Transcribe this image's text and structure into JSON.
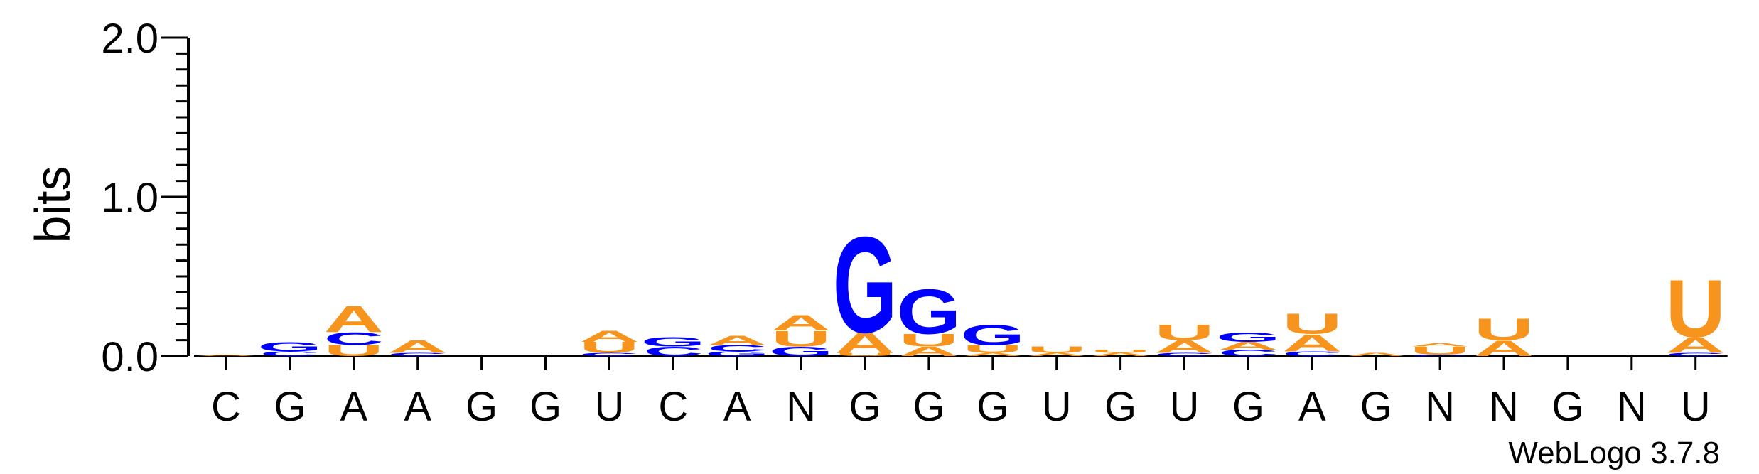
{
  "chart_data": {
    "type": "sequence-logo",
    "ylabel": "bits",
    "ylim": [
      0,
      2
    ],
    "yticks": [
      "0.0",
      "1.0",
      "2.0"
    ],
    "positions": [
      "C",
      "G",
      "A",
      "A",
      "G",
      "G",
      "U",
      "C",
      "A",
      "N",
      "G",
      "G",
      "G",
      "U",
      "G",
      "U",
      "G",
      "A",
      "G",
      "N",
      "N",
      "G",
      "N",
      "U"
    ],
    "stacks": [
      [
        {
          "base": "A",
          "bits": 0.01
        }
      ],
      [
        {
          "base": "C",
          "bits": 0.03
        },
        {
          "base": "G",
          "bits": 0.06
        }
      ],
      [
        {
          "base": "U",
          "bits": 0.07
        },
        {
          "base": "C",
          "bits": 0.08
        },
        {
          "base": "A",
          "bits": 0.17
        }
      ],
      [
        {
          "base": "C",
          "bits": 0.02
        },
        {
          "base": "A",
          "bits": 0.08
        }
      ],
      [],
      [],
      [
        {
          "base": "C",
          "bits": 0.02
        },
        {
          "base": "U",
          "bits": 0.07
        },
        {
          "base": "A",
          "bits": 0.07
        }
      ],
      [
        {
          "base": "C",
          "bits": 0.06
        },
        {
          "base": "G",
          "bits": 0.06
        }
      ],
      [
        {
          "base": "G",
          "bits": 0.03
        },
        {
          "base": "C",
          "bits": 0.04
        },
        {
          "base": "A",
          "bits": 0.06
        }
      ],
      [
        {
          "base": "G",
          "bits": 0.06
        },
        {
          "base": "U",
          "bits": 0.1
        },
        {
          "base": "A",
          "bits": 0.1
        }
      ],
      [
        {
          "base": "U",
          "bits": 0.02
        },
        {
          "base": "A",
          "bits": 0.13
        },
        {
          "base": "G",
          "bits": 0.62
        }
      ],
      [
        {
          "base": "A",
          "bits": 0.06
        },
        {
          "base": "U",
          "bits": 0.08
        },
        {
          "base": "G",
          "bits": 0.29
        }
      ],
      [
        {
          "base": "A",
          "bits": 0.02
        },
        {
          "base": "U",
          "bits": 0.05
        },
        {
          "base": "G",
          "bits": 0.13
        }
      ],
      [
        {
          "base": "A",
          "bits": 0.02
        },
        {
          "base": "U",
          "bits": 0.04
        }
      ],
      [
        {
          "base": "A",
          "bits": 0.02
        },
        {
          "base": "U",
          "bits": 0.02
        }
      ],
      [
        {
          "base": "C",
          "bits": 0.02
        },
        {
          "base": "A",
          "bits": 0.08
        },
        {
          "base": "U",
          "bits": 0.1
        }
      ],
      [
        {
          "base": "C",
          "bits": 0.04
        },
        {
          "base": "A",
          "bits": 0.05
        },
        {
          "base": "G",
          "bits": 0.06
        }
      ],
      [
        {
          "base": "C",
          "bits": 0.03
        },
        {
          "base": "A",
          "bits": 0.11
        },
        {
          "base": "U",
          "bits": 0.13
        }
      ],
      [
        {
          "base": "A",
          "bits": 0.02
        }
      ],
      [
        {
          "base": "C",
          "bits": 0.01
        },
        {
          "base": "U",
          "bits": 0.05
        },
        {
          "base": "A",
          "bits": 0.02
        }
      ],
      [
        {
          "base": "A",
          "bits": 0.1
        },
        {
          "base": "U",
          "bits": 0.14
        }
      ],
      [],
      [],
      [
        {
          "base": "C",
          "bits": 0.02
        },
        {
          "base": "A",
          "bits": 0.1
        },
        {
          "base": "U",
          "bits": 0.37
        }
      ]
    ],
    "colors": {
      "A": "#f7941d",
      "U": "#f7941d",
      "G": "#0000ff",
      "C": "#0000ff"
    }
  },
  "credit": "WebLogo 3.7.8"
}
